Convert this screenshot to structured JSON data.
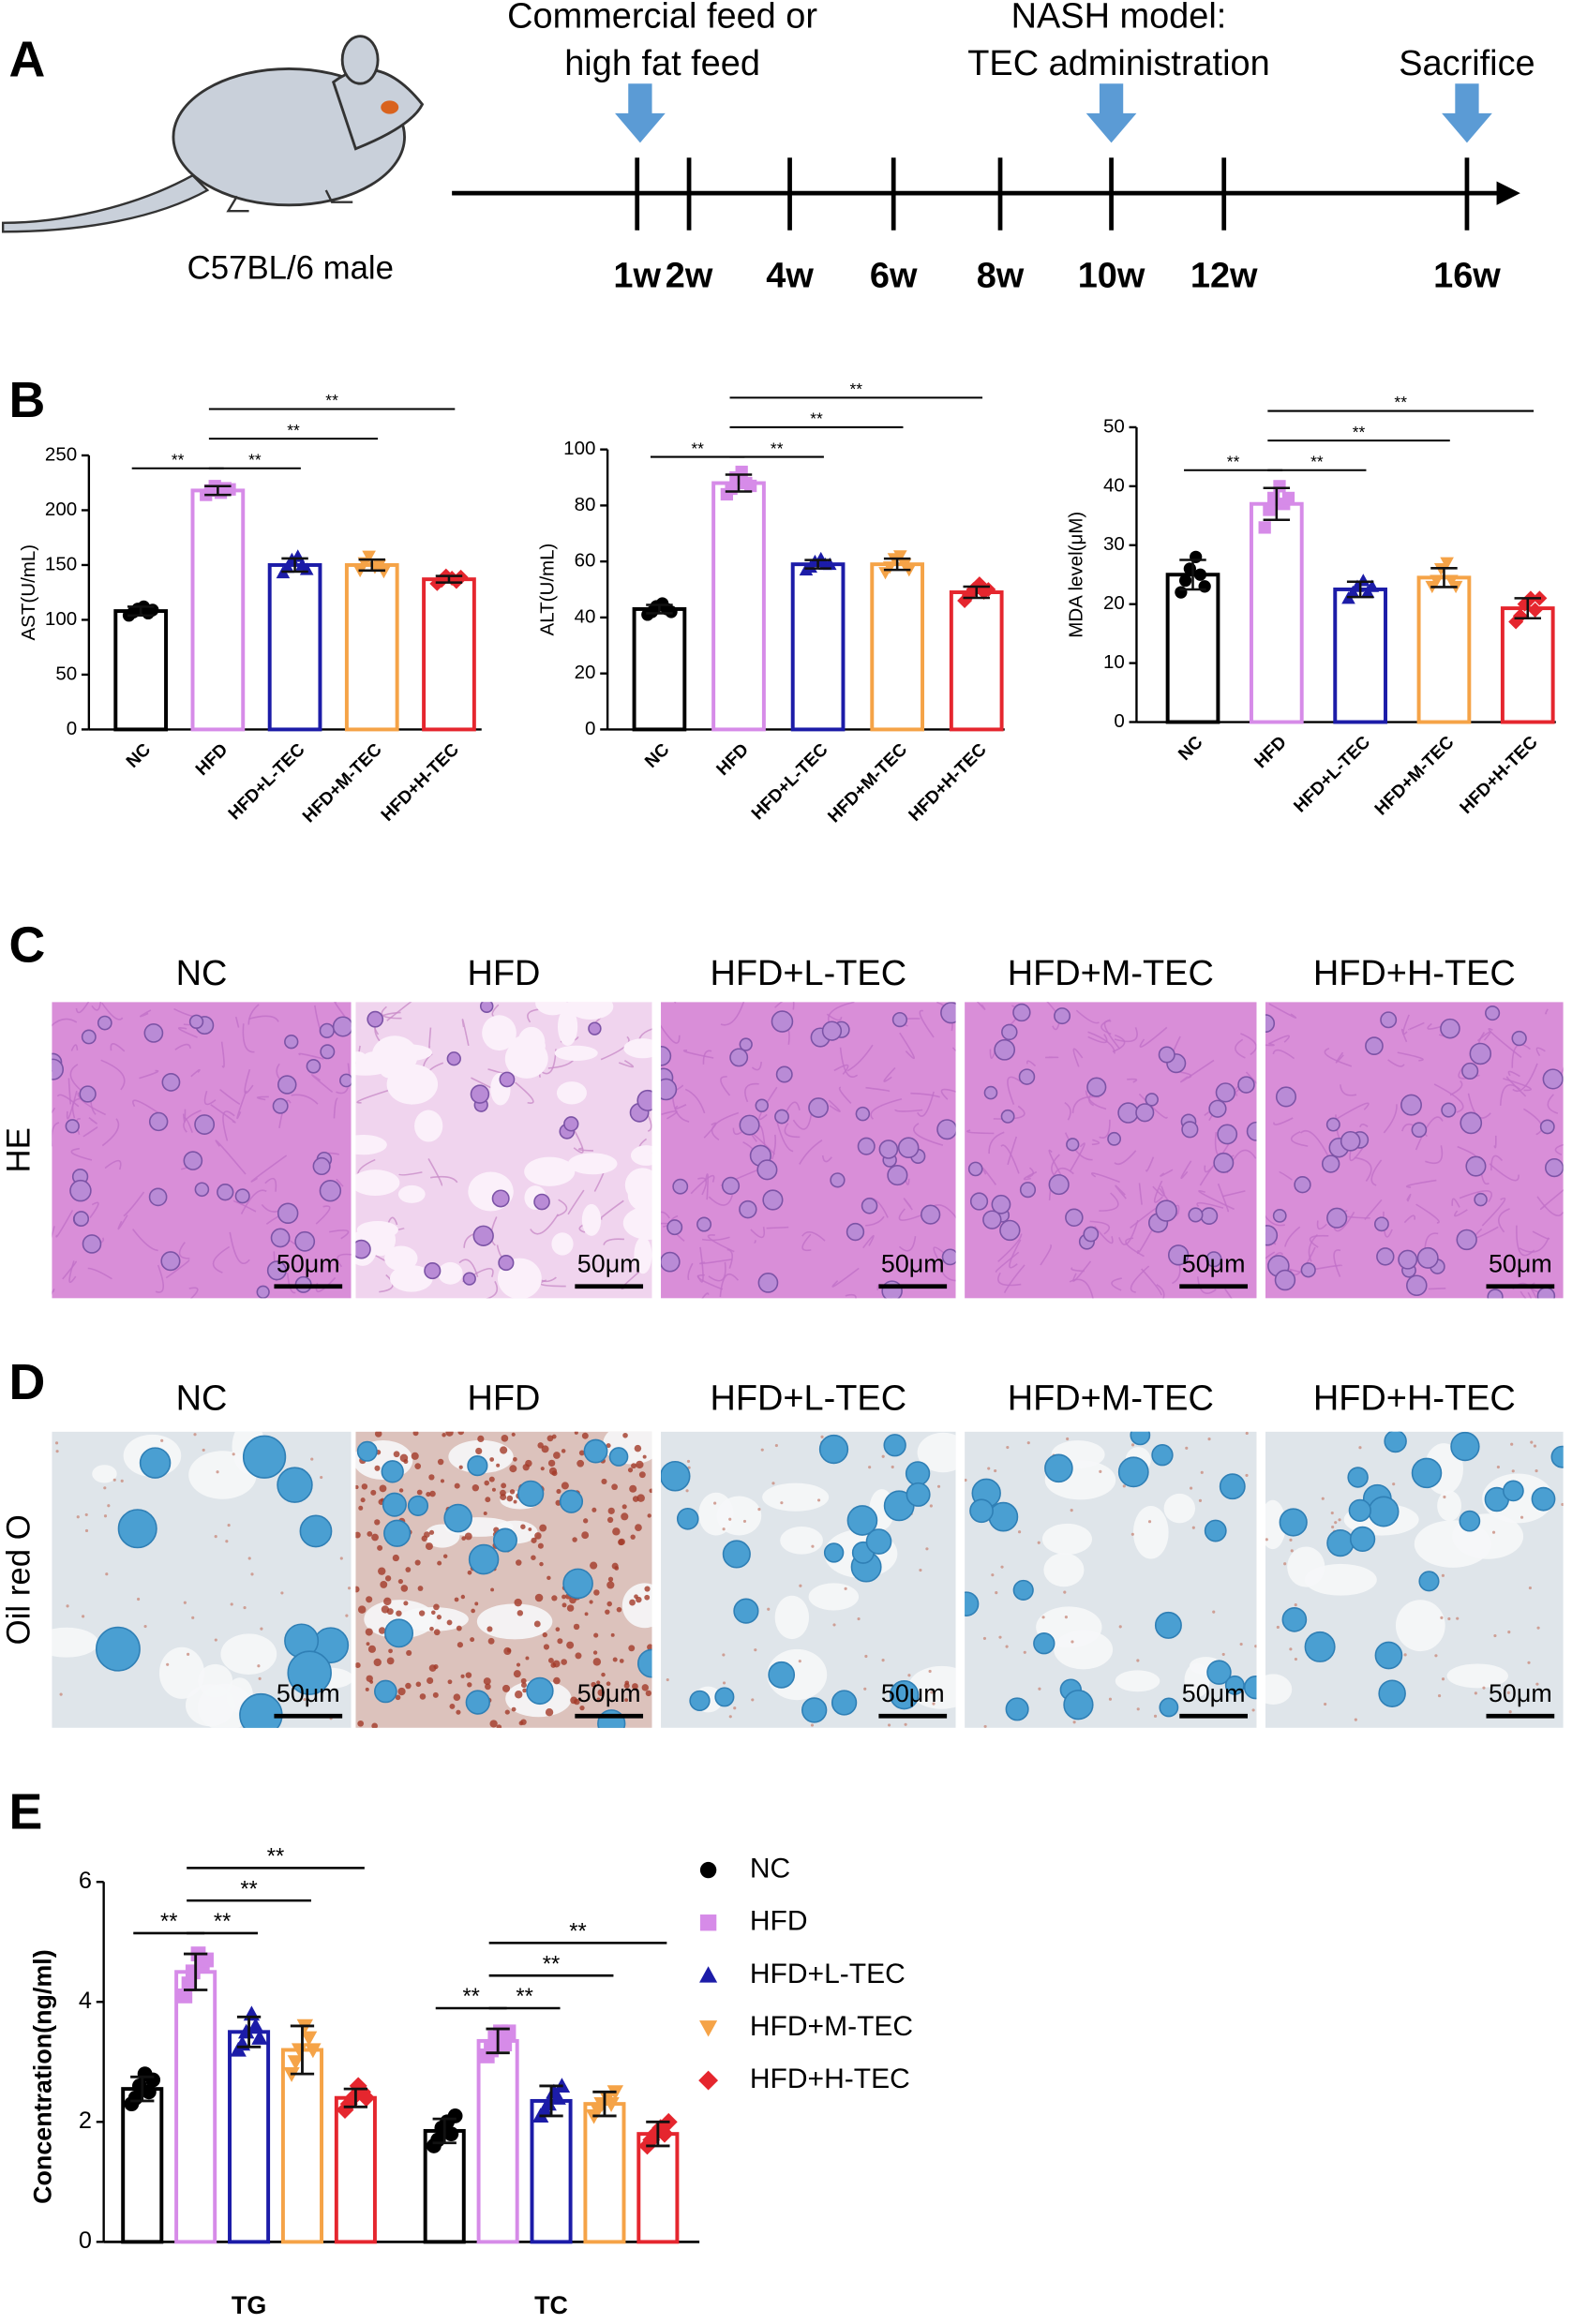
{
  "panel_labels": [
    "A",
    "B",
    "C",
    "D",
    "E"
  ],
  "timeline": {
    "subject": "C57BL/6 male",
    "events": [
      {
        "lines": [
          "Commercial feed or",
          "high fat feed"
        ]
      },
      {
        "lines": [
          "NASH model:",
          "TEC administration"
        ]
      },
      {
        "lines": [
          "Sacrifice"
        ]
      }
    ],
    "ticks": [
      "1w",
      "2w",
      "4w",
      "6w",
      "8w",
      "10w",
      "12w",
      "16w"
    ]
  },
  "chart_data": [
    {
      "type": "bar",
      "ylabel": "AST(U/mL)",
      "categories": [
        "NC",
        "HFD",
        "HFD+L-TEC",
        "HFD+M-TEC",
        "HFD+H-TEC"
      ],
      "colors": [
        "#000000",
        "#d68be8",
        "#1c1ca8",
        "#f5a347",
        "#e5262e"
      ],
      "markers": [
        "circle",
        "square",
        "triangle-up",
        "triangle-down",
        "diamond"
      ],
      "values": [
        108,
        218,
        150,
        150,
        137
      ],
      "errors": [
        4,
        4,
        6,
        5,
        3
      ],
      "points": [
        [
          104,
          107,
          110,
          112,
          106,
          109
        ],
        [
          214,
          218,
          222,
          216,
          220,
          219
        ],
        [
          143,
          148,
          155,
          158,
          150,
          146
        ],
        [
          145,
          152,
          158,
          148,
          150,
          144
        ],
        [
          133,
          136,
          140,
          138,
          135,
          139
        ]
      ],
      "ylim": [
        0,
        250
      ],
      "yticks": [
        0,
        50,
        100,
        150,
        200,
        250
      ],
      "significance": [
        {
          "pair": [
            "NC",
            "HFD"
          ],
          "label": "**"
        },
        {
          "pair": [
            "HFD",
            "HFD+L-TEC"
          ],
          "label": "**"
        },
        {
          "pair": [
            "HFD",
            "HFD+M-TEC"
          ],
          "label": "**"
        },
        {
          "pair": [
            "HFD",
            "HFD+H-TEC"
          ],
          "label": "**"
        }
      ]
    },
    {
      "type": "bar",
      "ylabel": "ALT(U/mL)",
      "categories": [
        "NC",
        "HFD",
        "HFD+L-TEC",
        "HFD+M-TEC",
        "HFD+H-TEC"
      ],
      "colors": [
        "#000000",
        "#d68be8",
        "#1c1ca8",
        "#f5a347",
        "#e5262e"
      ],
      "markers": [
        "circle",
        "square",
        "triangle-up",
        "triangle-down",
        "diamond"
      ],
      "values": [
        43,
        88,
        59,
        59,
        49
      ],
      "errors": [
        1.5,
        3,
        1.5,
        2,
        2
      ],
      "points": [
        [
          41,
          42,
          44,
          45,
          43,
          42
        ],
        [
          84,
          86,
          90,
          92,
          88,
          87
        ],
        [
          57,
          58,
          60,
          61,
          59,
          59
        ],
        [
          56,
          58,
          61,
          62,
          59,
          57
        ],
        [
          46,
          48,
          50,
          52,
          49,
          50
        ]
      ],
      "ylim": [
        0,
        100
      ],
      "yticks": [
        0,
        20,
        40,
        60,
        80,
        100
      ],
      "significance": [
        {
          "pair": [
            "NC",
            "HFD"
          ],
          "label": "**"
        },
        {
          "pair": [
            "HFD",
            "HFD+L-TEC"
          ],
          "label": "**"
        },
        {
          "pair": [
            "HFD",
            "HFD+M-TEC"
          ],
          "label": "**"
        },
        {
          "pair": [
            "HFD",
            "HFD+H-TEC"
          ],
          "label": "**"
        }
      ]
    },
    {
      "type": "bar",
      "ylabel": "MDA level(μM)",
      "categories": [
        "NC",
        "HFD",
        "HFD+L-TEC",
        "HFD+M-TEC",
        "HFD+H-TEC"
      ],
      "colors": [
        "#000000",
        "#d68be8",
        "#1c1ca8",
        "#f5a347",
        "#e5262e"
      ],
      "markers": [
        "circle",
        "square",
        "triangle-up",
        "triangle-down",
        "diamond"
      ],
      "values": [
        25,
        37,
        22.5,
        24.5,
        19.3
      ],
      "errors": [
        2.5,
        2.7,
        1.3,
        1.6,
        1.7
      ],
      "points": [
        [
          22,
          24,
          26,
          28,
          25,
          23
        ],
        [
          33,
          36,
          38,
          40,
          37,
          38
        ],
        [
          21,
          22,
          23,
          24,
          22,
          23
        ],
        [
          23,
          24,
          26,
          27,
          24,
          23
        ],
        [
          17,
          18,
          20,
          21,
          19,
          21
        ]
      ],
      "ylim": [
        0,
        50
      ],
      "yticks": [
        0,
        10,
        20,
        30,
        40,
        50
      ],
      "significance": [
        {
          "pair": [
            "NC",
            "HFD"
          ],
          "label": "**"
        },
        {
          "pair": [
            "HFD",
            "HFD+L-TEC"
          ],
          "label": "**"
        },
        {
          "pair": [
            "HFD",
            "HFD+M-TEC"
          ],
          "label": "**"
        },
        {
          "pair": [
            "HFD",
            "HFD+H-TEC"
          ],
          "label": "**"
        }
      ]
    },
    {
      "type": "grouped_bar",
      "ylabel": "Concentration(ng/ml)",
      "categories": [
        "TG",
        "TC"
      ],
      "legend": "right",
      "series": [
        {
          "name": "NC",
          "color": "#000000",
          "marker": "circle",
          "values": [
            2.55,
            1.85
          ],
          "errors": [
            0.2,
            0.2
          ],
          "points": [
            [
              2.3,
              2.4,
              2.6,
              2.8,
              2.5,
              2.7
            ],
            [
              1.6,
              1.7,
              1.9,
              2.0,
              1.8,
              2.1
            ]
          ]
        },
        {
          "name": "HFD",
          "color": "#d68be8",
          "marker": "square",
          "values": [
            4.5,
            3.35
          ],
          "errors": [
            0.3,
            0.2
          ],
          "points": [
            [
              4.1,
              4.3,
              4.5,
              4.8,
              4.6,
              4.7
            ],
            [
              3.1,
              3.2,
              3.4,
              3.5,
              3.3,
              3.5
            ]
          ]
        },
        {
          "name": "HFD+L-TEC",
          "color": "#1c1ca8",
          "marker": "triangle-up",
          "values": [
            3.5,
            2.35
          ],
          "errors": [
            0.25,
            0.25
          ],
          "points": [
            [
              3.2,
              3.3,
              3.5,
              3.8,
              3.6,
              3.4
            ],
            [
              2.1,
              2.2,
              2.3,
              2.5,
              2.4,
              2.6
            ]
          ]
        },
        {
          "name": "HFD+M-TEC",
          "color": "#f5a347",
          "marker": "triangle-down",
          "values": [
            3.2,
            2.3
          ],
          "errors": [
            0.4,
            0.2
          ],
          "points": [
            [
              2.8,
              3.0,
              3.2,
              3.6,
              3.4,
              3.2
            ],
            [
              2.1,
              2.2,
              2.3,
              2.4,
              2.3,
              2.5
            ]
          ]
        },
        {
          "name": "HFD+H-TEC",
          "color": "#e5262e",
          "marker": "diamond",
          "values": [
            2.4,
            1.8
          ],
          "errors": [
            0.15,
            0.2
          ],
          "points": [
            [
              2.2,
              2.3,
              2.4,
              2.6,
              2.5,
              2.4
            ],
            [
              1.6,
              1.7,
              1.8,
              1.9,
              1.8,
              2.0
            ]
          ]
        }
      ],
      "ylim": [
        0,
        6
      ],
      "yticks": [
        0,
        2,
        4,
        6
      ],
      "significance": [
        {
          "category": "TG",
          "pair": [
            "NC",
            "HFD"
          ],
          "label": "**"
        },
        {
          "category": "TG",
          "pair": [
            "HFD",
            "HFD+L-TEC"
          ],
          "label": "**"
        },
        {
          "category": "TG",
          "pair": [
            "HFD",
            "HFD+M-TEC"
          ],
          "label": "**"
        },
        {
          "category": "TG",
          "pair": [
            "HFD",
            "HFD+H-TEC"
          ],
          "label": "**"
        },
        {
          "category": "TC",
          "pair": [
            "NC",
            "HFD"
          ],
          "label": "**"
        },
        {
          "category": "TC",
          "pair": [
            "HFD",
            "HFD+L-TEC"
          ],
          "label": "**"
        },
        {
          "category": "TC",
          "pair": [
            "HFD",
            "HFD+M-TEC"
          ],
          "label": "**"
        },
        {
          "category": "TC",
          "pair": [
            "HFD",
            "HFD+H-TEC"
          ],
          "label": "**"
        }
      ]
    }
  ],
  "histology": {
    "columns": [
      "NC",
      "HFD",
      "HFD+L-TEC",
      "HFD+M-TEC",
      "HFD+H-TEC"
    ],
    "rows": [
      {
        "label": "HE"
      },
      {
        "label": "Oil red O"
      }
    ],
    "scale_bar": "50μm"
  }
}
